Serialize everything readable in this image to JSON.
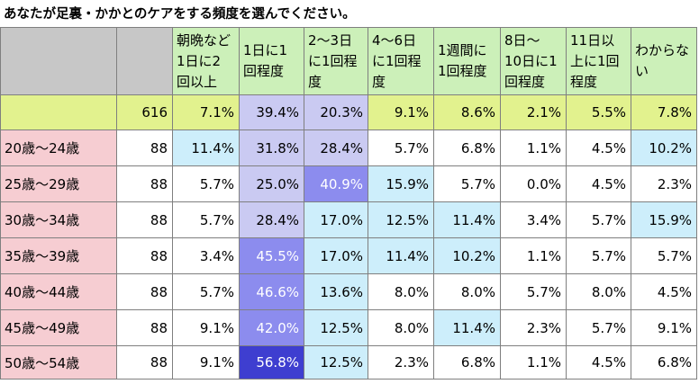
{
  "title": "あなたが足裏・かかとのケアをする頻度を選んでください。",
  "colors": {
    "header_bg": "#ccf0b9",
    "header_empty_bg": "#c7c7c7",
    "total_row_bg": "#e2f28e",
    "category_bg": "#f6cdd2",
    "light_blue": "#cdeefb",
    "light_purple": "#cacaf2",
    "medium_purple": "#8c8cee",
    "dark_purple": "#4f4fdb",
    "darkest_purple": "#3e3ed0"
  },
  "chart_data": {
    "type": "table",
    "title": "あなたが足裏・かかとのケアをする頻度を選んでください。",
    "columns": [
      "朝晩など1日に2回以上",
      "1日に1回程度",
      "2～3日に1回程度",
      "4～6日に1回程度",
      "1週間に1回程度",
      "8日～10日に1回程度",
      "11日以上に1回程度",
      "わからない"
    ],
    "header_lines": [
      [
        "朝晩など",
        "1日に2",
        "回以上"
      ],
      [
        "1日に1",
        "回程度"
      ],
      [
        "2～3日",
        "に1回程",
        "度"
      ],
      [
        "4～6日",
        "に1回程",
        "度"
      ],
      [
        "1週間に",
        "1回程度"
      ],
      [
        "8日～",
        "10日に1",
        "回程度"
      ],
      [
        "11日以",
        "上に1回",
        "程度"
      ],
      [
        "わからな",
        "い"
      ]
    ],
    "total": {
      "label": "",
      "n": "616",
      "values": [
        "7.1%",
        "39.4%",
        "20.3%",
        "9.1%",
        "8.6%",
        "2.1%",
        "5.5%",
        "7.8%"
      ],
      "highlight": [
        "",
        "light_purple",
        "light_purple",
        "",
        "",
        "",
        "",
        ""
      ]
    },
    "rows": [
      {
        "label": "20歳～24歳",
        "n": "88",
        "values": [
          "11.4%",
          "31.8%",
          "28.4%",
          "5.7%",
          "6.8%",
          "1.1%",
          "4.5%",
          "10.2%"
        ],
        "highlight": [
          "light_blue",
          "light_purple",
          "light_purple",
          "",
          "",
          "",
          "",
          "light_blue"
        ]
      },
      {
        "label": "25歳～29歳",
        "n": "88",
        "values": [
          "5.7%",
          "25.0%",
          "40.9%",
          "15.9%",
          "5.7%",
          "0.0%",
          "4.5%",
          "2.3%"
        ],
        "highlight": [
          "",
          "light_purple",
          "medium_purple",
          "light_blue",
          "",
          "",
          "",
          ""
        ]
      },
      {
        "label": "30歳～34歳",
        "n": "88",
        "values": [
          "5.7%",
          "28.4%",
          "17.0%",
          "12.5%",
          "11.4%",
          "3.4%",
          "5.7%",
          "15.9%"
        ],
        "highlight": [
          "",
          "light_purple",
          "light_blue",
          "light_blue",
          "light_blue",
          "",
          "",
          "light_blue"
        ]
      },
      {
        "label": "35歳～39歳",
        "n": "88",
        "values": [
          "3.4%",
          "45.5%",
          "17.0%",
          "11.4%",
          "10.2%",
          "1.1%",
          "5.7%",
          "5.7%"
        ],
        "highlight": [
          "",
          "medium_purple",
          "light_blue",
          "light_blue",
          "light_blue",
          "",
          "",
          ""
        ]
      },
      {
        "label": "40歳～44歳",
        "n": "88",
        "values": [
          "5.7%",
          "46.6%",
          "13.6%",
          "8.0%",
          "8.0%",
          "5.7%",
          "8.0%",
          "4.5%"
        ],
        "highlight": [
          "",
          "medium_purple",
          "light_blue",
          "",
          "",
          "",
          "",
          ""
        ]
      },
      {
        "label": "45歳～49歳",
        "n": "88",
        "values": [
          "9.1%",
          "42.0%",
          "12.5%",
          "8.0%",
          "11.4%",
          "2.3%",
          "5.7%",
          "9.1%"
        ],
        "highlight": [
          "",
          "medium_purple",
          "light_blue",
          "",
          "light_blue",
          "",
          "",
          ""
        ]
      },
      {
        "label": "50歳～54歳",
        "n": "88",
        "values": [
          "9.1%",
          "56.8%",
          "12.5%",
          "2.3%",
          "6.8%",
          "1.1%",
          "4.5%",
          "6.8%"
        ],
        "highlight": [
          "",
          "darkest_purple",
          "light_blue",
          "",
          "",
          "",
          "",
          ""
        ]
      }
    ]
  }
}
